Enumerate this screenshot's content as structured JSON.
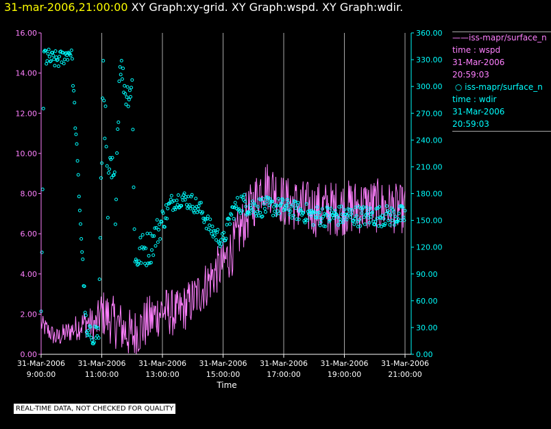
{
  "header": {
    "time": "31-mar-2006,21:00:00",
    "rest": " XY Graph:xy-grid.  XY Graph:wspd.  XY Graph:wdir."
  },
  "legend": {
    "series1": {
      "name": "iss-mapr/surface_n",
      "line2": "time : wspd",
      "line3": "31-Mar-2006",
      "line4": "20:59:03"
    },
    "series2": {
      "name": "iss-mapr/surface_n",
      "line2": "time : wdir",
      "line3": "31-Mar-2006",
      "line4": "20:59:03"
    }
  },
  "notice": "REAL-TIME DATA, NOT CHECKED FOR QUALITY",
  "colors": {
    "wspd": "#ff80ff",
    "wdir": "#00ffff",
    "grid": "#aaaaaa",
    "title_time": "#ffff00"
  },
  "chart_data": {
    "type": "line",
    "xlabel": "Time",
    "x_ticks": [
      {
        "date": "31-Mar-2006",
        "time": "9:00:00"
      },
      {
        "date": "31-Mar-2006",
        "time": "11:00:00"
      },
      {
        "date": "31-Mar-2006",
        "time": "13:00:00"
      },
      {
        "date": "31-Mar-2006",
        "time": "15:00:00"
      },
      {
        "date": "31-Mar-2006",
        "time": "17:00:00"
      },
      {
        "date": "31-Mar-2006",
        "time": "19:00:00"
      },
      {
        "date": "31-Mar-2006",
        "time": "21:00:00"
      }
    ],
    "x_hours": [
      9,
      11,
      13,
      15,
      17,
      19,
      21
    ],
    "xlim_hours": [
      9,
      21
    ],
    "y_left_ticks": [
      "0.00",
      "2.00",
      "4.00",
      "6.00",
      "8.00",
      "10.00",
      "12.00",
      "14.00",
      "16.00"
    ],
    "y_left_lim": [
      0,
      16
    ],
    "y_right_ticks": [
      "0.00",
      "30.00",
      "60.00",
      "90.00",
      "120.00",
      "150.00",
      "180.00",
      "210.00",
      "240.00",
      "270.00",
      "300.00",
      "330.00",
      "360.00"
    ],
    "y_right_lim": [
      0,
      360
    ],
    "grid": "vertical",
    "series": [
      {
        "key": "wspd",
        "style": "line",
        "axis": "left",
        "anchors_hours": [
          9.0,
          9.5,
          10.0,
          10.5,
          10.8,
          11.0,
          11.5,
          12.0,
          12.5,
          13.0,
          13.5,
          14.0,
          14.3,
          14.7,
          15.0,
          15.3,
          15.6,
          16.0,
          16.3,
          16.7,
          17.0,
          18.0,
          19.0,
          20.0,
          21.0
        ],
        "anchors_values": [
          1.5,
          0.8,
          1.2,
          1.6,
          1.4,
          2.1,
          1.5,
          0.9,
          1.6,
          2.2,
          2.0,
          2.7,
          3.2,
          4.0,
          4.5,
          5.2,
          6.3,
          7.5,
          8.5,
          8.2,
          7.6,
          7.2,
          7.3,
          7.4,
          7.2
        ],
        "noise": [
          0.5,
          0.5,
          0.6,
          0.8,
          0.9,
          1.2,
          1.3,
          1.3,
          1.3,
          1.2,
          1.2,
          1.2,
          1.2,
          1.2,
          1.2,
          1.3,
          1.3,
          1.3,
          1.3,
          1.3,
          1.3,
          1.4,
          1.4,
          1.4,
          1.2
        ]
      },
      {
        "key": "wdir",
        "style": "scatter",
        "axis": "right",
        "anchors_hours": [
          9.0,
          9.1,
          9.3,
          9.6,
          10.0,
          10.5,
          10.9,
          11.05,
          11.2,
          11.3,
          11.45,
          11.6,
          11.8,
          12.0,
          12.1,
          12.25,
          12.6,
          13.0,
          13.3,
          13.6,
          14.0,
          14.3,
          14.6,
          14.9,
          15.0,
          15.3,
          15.6,
          16.0,
          17.0,
          18.0,
          19.0,
          20.0,
          21.0
        ],
        "anchors_values": [
          45,
          335,
          330,
          330,
          340,
          20,
          25,
          330,
          160,
          200,
          175,
          330,
          290,
          300,
          100,
          115,
          120,
          150,
          170,
          175,
          170,
          160,
          140,
          130,
          125,
          160,
          170,
          165,
          165,
          155,
          155,
          155,
          155
        ],
        "noise": [
          10,
          15,
          10,
          10,
          8,
          10,
          15,
          30,
          40,
          40,
          30,
          15,
          15,
          20,
          20,
          20,
          20,
          15,
          10,
          10,
          10,
          10,
          10,
          10,
          10,
          10,
          12,
          12,
          10,
          12,
          12,
          12,
          12
        ]
      }
    ]
  }
}
